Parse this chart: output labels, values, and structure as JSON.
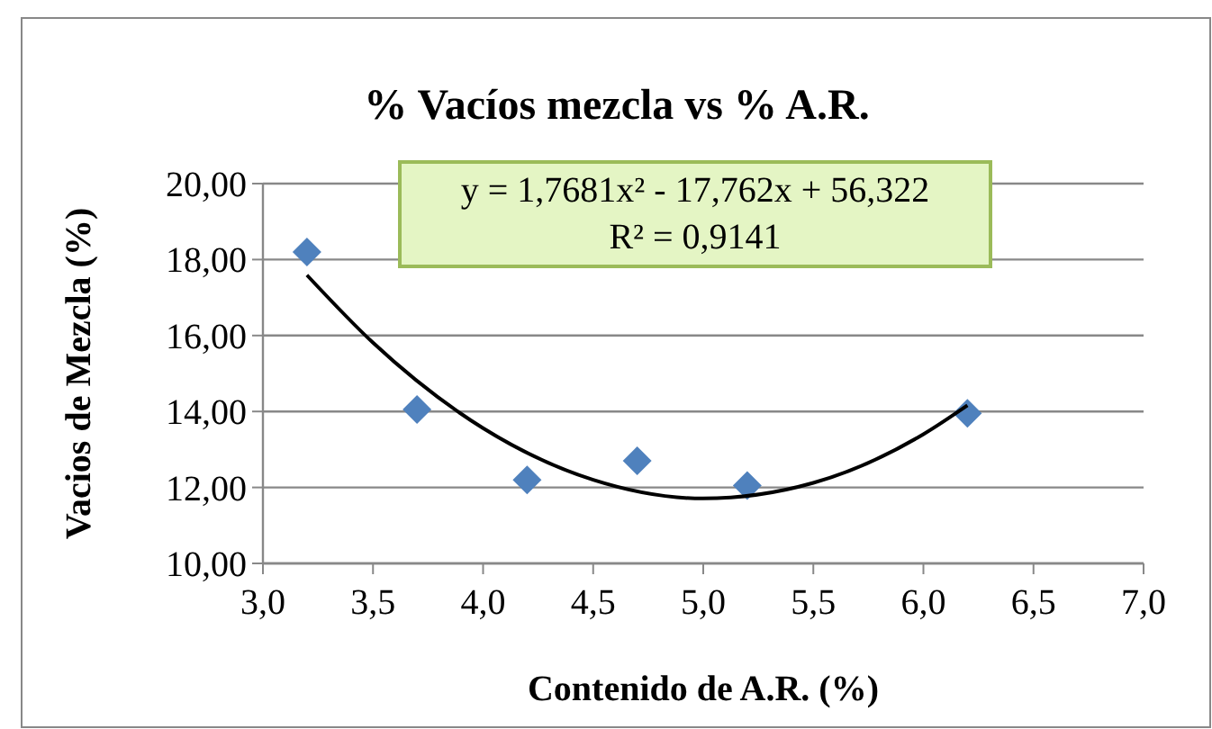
{
  "chart_data": {
    "type": "scatter",
    "title": "% Vacíos mezcla vs % A.R.",
    "xlabel": "Contenido de A.R. (%)",
    "ylabel": "Vacios de Mezcla (%)",
    "annotations": [
      "y = 1,7681x² - 17,762x + 56,322",
      "R² = 0,9141"
    ],
    "x": [
      3.2,
      3.7,
      4.2,
      4.7,
      5.2,
      6.2
    ],
    "series": [
      {
        "color": "#4f81bd",
        "marker": "diamond",
        "values": [
          18.2,
          14.05,
          12.2,
          12.7,
          12.05,
          13.95
        ]
      },
      {
        "type": "line",
        "color": "#000000",
        "marker": "none",
        "x": [
          3.2,
          3.5,
          4.0,
          4.5,
          5.0,
          5.5,
          6.0,
          6.2
        ],
        "values": [
          17.59,
          15.81,
          13.56,
          12.2,
          11.71,
          12.12,
          13.4,
          14.16
        ]
      }
    ],
    "xlim": [
      3.0,
      7.0
    ],
    "xticks": [
      {
        "value": 3,
        "label": "3,0"
      },
      {
        "value": 3.5,
        "label": "3,5"
      },
      {
        "value": 4,
        "label": "4,0"
      },
      {
        "value": 4.5,
        "label": "4,5"
      },
      {
        "value": 5,
        "label": "5,0"
      },
      {
        "value": 5.5,
        "label": "5,5"
      },
      {
        "value": 6,
        "label": "6,0"
      },
      {
        "value": 6.5,
        "label": "6,5"
      },
      {
        "value": 7,
        "label": "7,0"
      }
    ],
    "ylim": [
      10,
      20
    ],
    "yticks": [
      {
        "value": 10,
        "label": "10,00"
      },
      {
        "value": 12,
        "label": "12,00"
      },
      {
        "value": 14,
        "label": "14,00"
      },
      {
        "value": 16,
        "label": "16,00"
      },
      {
        "value": 18,
        "label": "18,00"
      },
      {
        "value": 20,
        "label": "20,00"
      }
    ],
    "grid": "y"
  }
}
